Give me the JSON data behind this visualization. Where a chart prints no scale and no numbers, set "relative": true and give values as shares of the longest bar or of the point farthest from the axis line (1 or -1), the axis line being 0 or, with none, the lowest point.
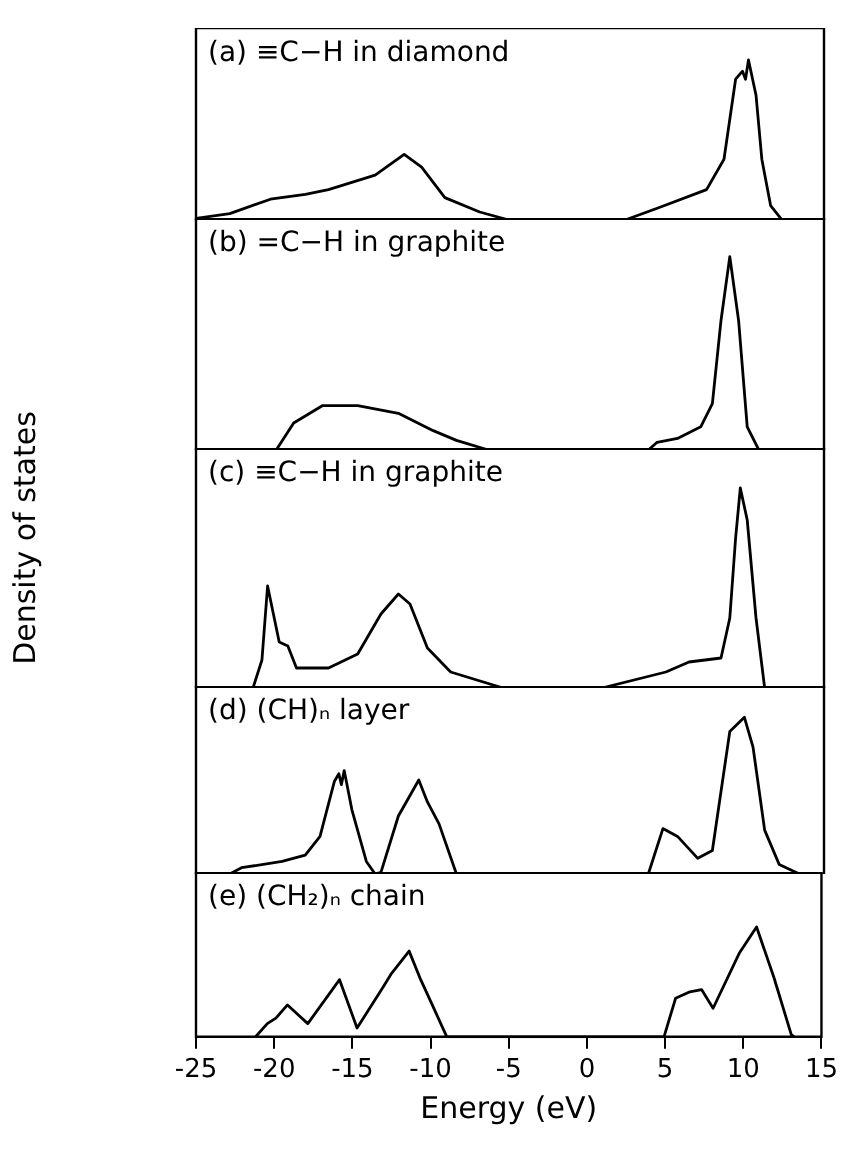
{
  "chart_data": [
    {
      "type": "line",
      "title": "(a) ≡C−H in diamond",
      "relative": true,
      "xlim": [
        -25,
        15
      ],
      "tick_labels": false,
      "series": [
        {
          "color": "#000000",
          "x": [
            -25,
            -22.85,
            -20.26,
            -18.04,
            -16.56,
            -13.59,
            -11.74,
            -10.63,
            -9.15,
            -6.93,
            -5.07,
            2.33,
            4.55,
            7.52,
            8.63,
            9.37,
            9.81,
            10.0,
            10.19,
            10.67,
            11.04,
            11.6,
            12.33
          ],
          "values": [
            0.01,
            0.04,
            0.13,
            0.16,
            0.19,
            0.28,
            0.41,
            0.33,
            0.14,
            0.05,
            0,
            0,
            0.08,
            0.19,
            0.38,
            0.88,
            0.93,
            0.88,
            1.0,
            0.78,
            0.38,
            0.09,
            0
          ]
        }
      ]
    },
    {
      "type": "line",
      "title": "(b) =C−H in graphite",
      "relative": true,
      "xlim": [
        -25,
        15
      ],
      "tick_labels": false,
      "series": [
        {
          "color": "#000000",
          "x": [
            -19.89,
            -18.78,
            -16.93,
            -14.7,
            -12.11,
            -9.89,
            -8.41,
            -6.37,
            3.81,
            4.37,
            5.67,
            7.15,
            7.89,
            8.44,
            9.0,
            9.56,
            10.11,
            10.85
          ],
          "values": [
            0,
            0.14,
            0.23,
            0.23,
            0.19,
            0.1,
            0.05,
            0,
            0,
            0.04,
            0.06,
            0.12,
            0.24,
            0.67,
            1.0,
            0.67,
            0.12,
            0
          ]
        }
      ]
    },
    {
      "type": "line",
      "title": "(c) ≡C−H in graphite",
      "ylabel": "Density of states",
      "relative": true,
      "xlim": [
        -25,
        15
      ],
      "tick_labels": false,
      "series": [
        {
          "color": "#000000",
          "x": [
            -21.37,
            -20.8,
            -20.44,
            -20.07,
            -19.7,
            -19.15,
            -18.6,
            -16.56,
            -14.7,
            -13.22,
            -12.11,
            -11.37,
            -10.26,
            -8.78,
            -5.44,
            0.85,
            4.93,
            6.4,
            8.44,
            9.0,
            9.37,
            9.67,
            10.11,
            10.67,
            11.22
          ],
          "values": [
            0,
            0.14,
            0.51,
            0.37,
            0.23,
            0.21,
            0.1,
            0.1,
            0.17,
            0.37,
            0.47,
            0.42,
            0.2,
            0.08,
            0,
            0,
            0.08,
            0.13,
            0.15,
            0.35,
            0.75,
            1.0,
            0.84,
            0.35,
            0
          ]
        }
      ]
    },
    {
      "type": "line",
      "title": "(d) (CH)ₙ layer",
      "relative": true,
      "xlim": [
        -25,
        15
      ],
      "tick_labels": false,
      "series": [
        {
          "color": "#000000",
          "x": [
            -22.85,
            -22.1,
            -19.52,
            -18.04,
            -17.1,
            -16.19,
            -15.9,
            -15.74,
            -15.56,
            -15.07,
            -14.15,
            -13.59,
            -13.22,
            -12.11,
            -10.81,
            -10.26,
            -9.52,
            -8.41,
            3.81,
            4.74,
            5.67,
            6.96,
            7.89,
            9.0,
            9.93,
            10.48,
            11.22,
            12.15,
            13.44
          ],
          "values": [
            0,
            0.04,
            0.08,
            0.12,
            0.24,
            0.59,
            0.64,
            0.57,
            0.66,
            0.41,
            0.08,
            0,
            0.01,
            0.37,
            0.6,
            0.46,
            0.32,
            0,
            0,
            0.29,
            0.24,
            0.1,
            0.15,
            0.91,
            1.0,
            0.81,
            0.28,
            0.06,
            0
          ]
        }
      ]
    },
    {
      "type": "line",
      "title": "(e) (CH₂)ₙ chain",
      "xlabel": "Energy (eV)",
      "relative": true,
      "xlim": [
        -25,
        15
      ],
      "xticks": [
        -25,
        -20,
        -15,
        -10,
        -5,
        0,
        5,
        10,
        15
      ],
      "tick_labels": "x",
      "series": [
        {
          "color": "#000000",
          "x": [
            -21.19,
            -20.44,
            -19.89,
            -19.15,
            -17.85,
            -15.82,
            -14.7,
            -13.04,
            -12.48,
            -11.37,
            -10.63,
            -9.89,
            -8.96,
            4.93,
            5.67,
            6.59,
            7.33,
            8.07,
            9.74,
            10.85,
            11.96,
            13.07,
            13.26
          ],
          "values": [
            0,
            0.12,
            0.17,
            0.29,
            0.12,
            0.52,
            0.08,
            0.45,
            0.58,
            0.78,
            0.52,
            0.29,
            0,
            0,
            0.35,
            0.41,
            0.43,
            0.26,
            0.76,
            1.0,
            0.54,
            0.02,
            0
          ]
        }
      ]
    }
  ]
}
